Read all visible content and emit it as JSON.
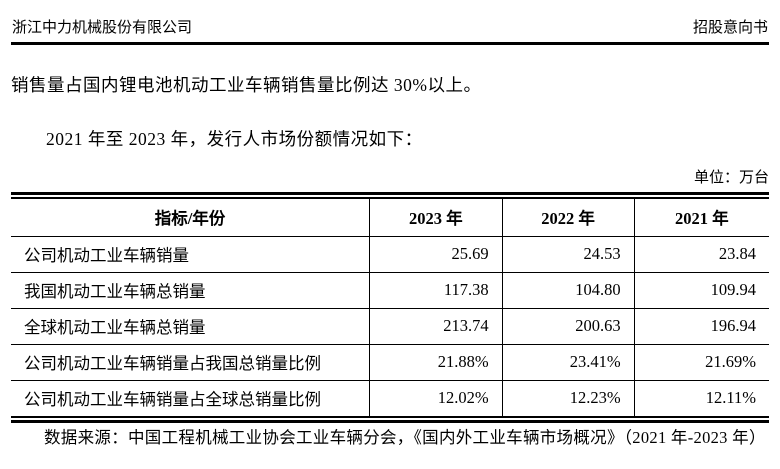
{
  "header": {
    "company": "浙江中力机械股份有限公司",
    "doc_type": "招股意向书"
  },
  "body": {
    "para_1": "销售量占国内锂电池机动工业车辆销售量比例达 30%以上。",
    "para_2": "2021 年至 2023 年，发行人市场份额情况如下：",
    "unit_label": "单位：万台",
    "source_note": "数据来源：中国工程机械工业协会工业车辆分会，《国内外工业车辆市场概况》（2021 年-2023 年）"
  },
  "table": {
    "columns": [
      "指标/年份",
      "2023 年",
      "2022 年",
      "2021 年"
    ],
    "rows": [
      {
        "label": "公司机动工业车辆销量",
        "values": [
          "25.69",
          "24.53",
          "23.84"
        ]
      },
      {
        "label": "我国机动工业车辆总销量",
        "values": [
          "117.38",
          "104.80",
          "109.94"
        ]
      },
      {
        "label": "全球机动工业车辆总销量",
        "values": [
          "213.74",
          "200.63",
          "196.94"
        ]
      },
      {
        "label": "公司机动工业车辆销量占我国总销量比例",
        "values": [
          "21.88%",
          "23.41%",
          "21.69%"
        ]
      },
      {
        "label": "公司机动工业车辆销量占全球总销量比例",
        "values": [
          "12.02%",
          "12.23%",
          "12.11%"
        ]
      }
    ],
    "unit": "万台",
    "border_color": "#000000"
  }
}
